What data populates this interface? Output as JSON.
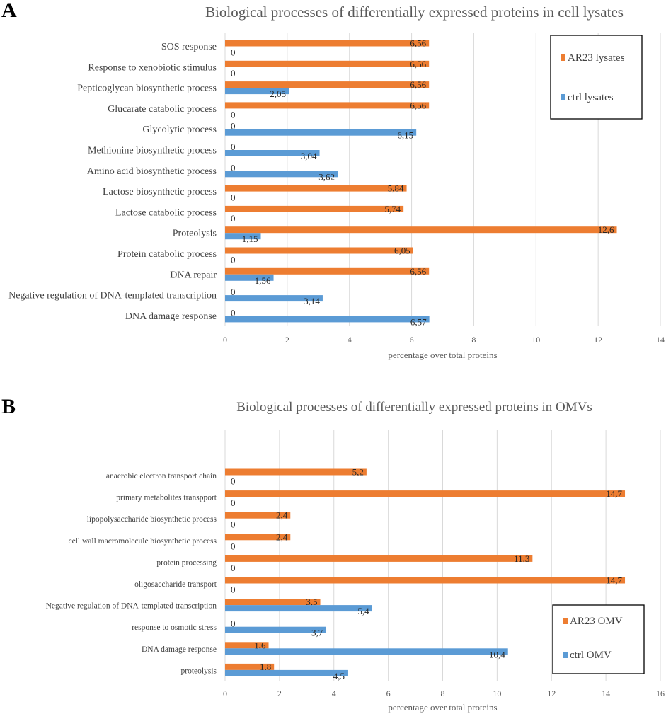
{
  "colors": {
    "series1": "#ED7D31",
    "series2": "#5B9BD5",
    "grid": "#D9D9D9",
    "text": "#404040"
  },
  "chart_data": [
    {
      "panel": "A",
      "type": "bar",
      "orientation": "horizontal",
      "title": "Biological processes of differentially expressed proteins in cell lysates",
      "xlabel": "percentage over total proteins",
      "ylabel": "",
      "xlim": [
        0,
        14
      ],
      "xticks": [
        0,
        2,
        4,
        6,
        8,
        10,
        12,
        14
      ],
      "grid": true,
      "legend": "top-right",
      "categories": [
        "SOS response",
        "Response to xenobiotic stimulus",
        "Pepticoglycan biosynthetic process",
        "Glucarate catabolic process",
        "Glycolytic process",
        "Methionine biosynthetic process",
        "Amino acid biosynthetic process",
        "Lactose biosynthetic process",
        "Lactose catabolic process",
        "Proteolysis",
        "Protein catabolic process",
        "DNA repair",
        "Negative regulation of DNA-templated transcription",
        "DNA damage response"
      ],
      "series": [
        {
          "name": "AR23 lysates",
          "values": [
            6.56,
            6.56,
            6.56,
            6.56,
            0,
            0,
            0,
            5.84,
            5.74,
            12.6,
            6.05,
            6.56,
            0,
            0
          ],
          "labels": [
            "6,56",
            "6,56",
            "6,56",
            "6,56",
            "0",
            "0",
            "0",
            "5,84",
            "5,74",
            "12,6",
            "6,05",
            "6,56",
            "0",
            "0"
          ]
        },
        {
          "name": "ctrl lysates",
          "values": [
            0,
            0,
            2.05,
            0,
            6.15,
            3.04,
            3.62,
            0,
            0,
            1.15,
            0,
            1.56,
            3.14,
            6.57
          ],
          "labels": [
            "0",
            "0",
            "2,05",
            "0",
            "6,15",
            "3,04",
            "3,62",
            "0",
            "0",
            "1,15",
            "0",
            "1,56",
            "3,14",
            "6,57"
          ]
        }
      ]
    },
    {
      "panel": "B",
      "type": "bar",
      "orientation": "horizontal",
      "title": "Biological processes of differentially expressed proteins in OMVs",
      "xlabel": "percentage over total proteins",
      "ylabel": "",
      "xlim": [
        0,
        16
      ],
      "xticks": [
        0,
        2,
        4,
        6,
        8,
        10,
        12,
        14,
        16
      ],
      "grid": true,
      "legend": "bottom-right",
      "categories": [
        "anaerobic electron transport chain",
        "primary metabolites transpport",
        "lipopolysaccharide biosynthetic process",
        "cell wall macromolecule biosynthetic process",
        "protein processing",
        "oligosaccharide transport",
        "Negative regulation of DNA-templated transcription",
        "response to osmotic stress",
        "DNA damage response",
        "proteolysis"
      ],
      "series": [
        {
          "name": "AR23 OMV",
          "values": [
            5.2,
            14.7,
            2.4,
            2.4,
            11.3,
            14.7,
            3.5,
            0,
            1.6,
            1.8
          ],
          "labels": [
            "5,2",
            "14,7",
            "2,4",
            "2,4",
            "11,3",
            "14,7",
            "3,5",
            "0",
            "1,6",
            "1,8"
          ]
        },
        {
          "name": "ctrl OMV",
          "values": [
            0,
            0,
            0,
            0,
            0,
            0,
            5.4,
            3.7,
            10.4,
            4.5
          ],
          "labels": [
            "0",
            "0",
            "0",
            "0",
            "0",
            "0",
            "5,4",
            "3,7",
            "10,4",
            "4,5"
          ]
        }
      ]
    }
  ]
}
